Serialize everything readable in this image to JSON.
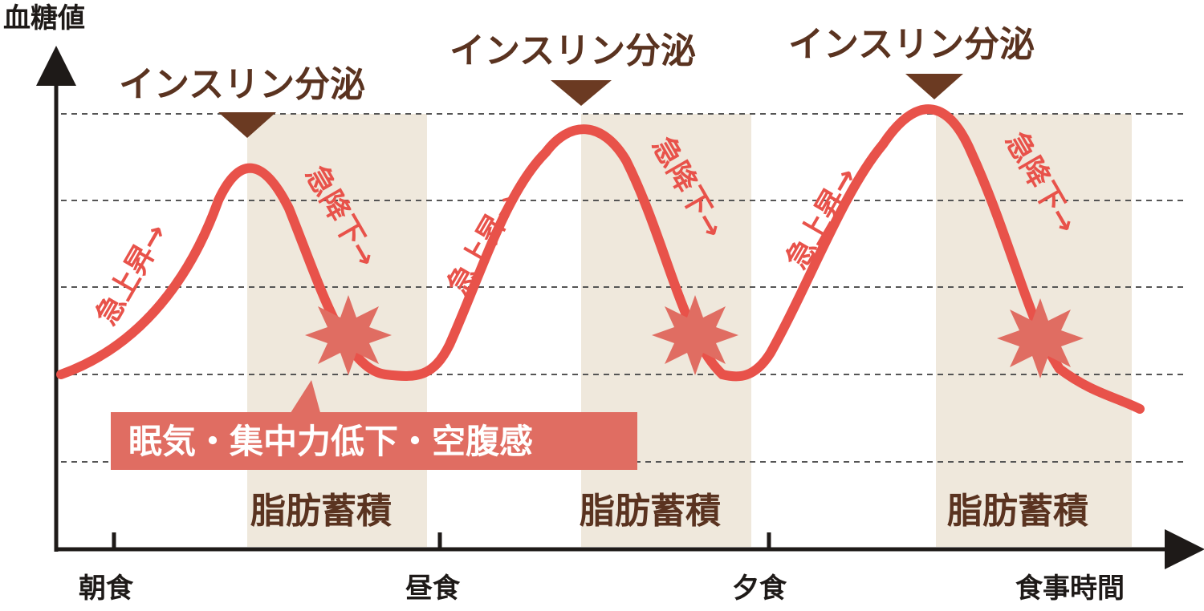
{
  "axes": {
    "y_label": "血糖値",
    "x_label": "食事時間",
    "meals": [
      "朝食",
      "昼食",
      "夕食"
    ]
  },
  "labels": {
    "insulin": "インスリン分泌",
    "rise": "急上昇→",
    "fall": "急降下→",
    "fat": "脂肪蓄積",
    "symptoms": "眠気・集中力低下・空腹感"
  },
  "colors": {
    "curve": "#e8524a",
    "marker": "#6b3a22",
    "band": "#efe8dc",
    "label_text": "#5a3320",
    "grid": "#555555",
    "symptom_box": "#e06d62"
  }
}
